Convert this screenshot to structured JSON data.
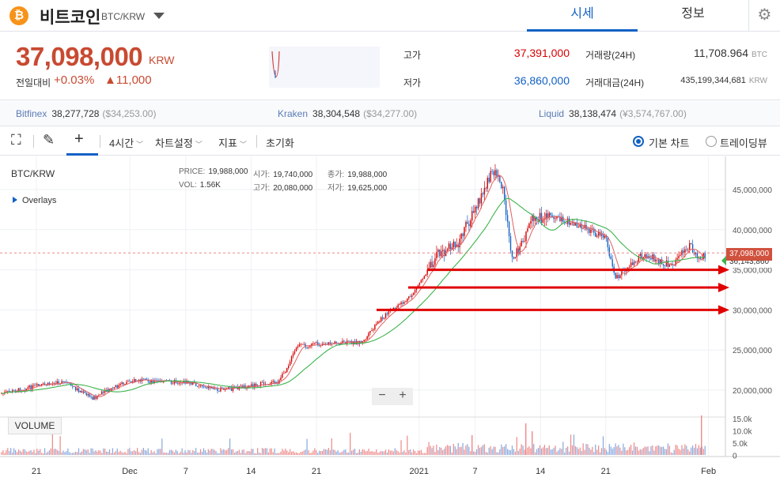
{
  "header": {
    "coin_icon": "bitcoin-icon",
    "coin_symbol": "₿",
    "coin_name": "비트코인",
    "pair": "BTC/KRW",
    "tabs": [
      {
        "label": "시세"
      },
      {
        "label": "정보"
      }
    ],
    "settings_icon": "⚙"
  },
  "summary": {
    "price": "37,098,000",
    "unit": "KRW",
    "change_label": "전일대비",
    "change_pct": "+0.03%",
    "change_abs": "▲11,000",
    "high_label": "고가",
    "high": "37,391,000",
    "low_label": "저가",
    "low": "36,860,000",
    "volume_label": "거래량(24H)",
    "volume": "11,708.964",
    "volume_unit": "BTC",
    "amount_label": "거래대금(24H)",
    "amount": "435,199,344,681",
    "amount_unit": "KRW"
  },
  "exchanges": [
    {
      "name": "Bitfinex",
      "price": "38,277,728",
      "usd": "($34,253.00)"
    },
    {
      "name": "Kraken",
      "price": "38,304,548",
      "usd": "($34,277.00)"
    },
    {
      "name": "Liquid",
      "price": "38,138,474",
      "usd": "(¥3,574,767.00)"
    }
  ],
  "toolbar": {
    "interval": "4시간",
    "chart_settings": "차트설정",
    "indicators": "지표",
    "reset": "초기화",
    "basic_chart": "기본 차트",
    "tradingview": "트레이딩뷰"
  },
  "chart_info": {
    "pair": "BTC/KRW",
    "overlays": "Overlays",
    "price_k": "PRICE:",
    "price_v": "19,988,000",
    "vol_k": "VOL:",
    "vol_v": "1.56K",
    "open_k": "시가:",
    "open_v": "19,740,000",
    "high_k": "고가:",
    "high_v": "20,080,000",
    "close_k": "종가:",
    "close_v": "19,988,000",
    "low_k": "저가:",
    "low_v": "19,625,000",
    "current_tag": "37,098,000",
    "ma_tag": "36,143,860",
    "volume_label": "VOLUME",
    "zoom_out": "−",
    "zoom_in": "+"
  },
  "chart_data": {
    "type": "candlestick",
    "x_ticks": [
      "21",
      "Dec",
      "7",
      "14",
      "21",
      "2021",
      "7",
      "14",
      "21",
      "Feb"
    ],
    "y_ticks": [
      "45,000,000",
      "40,000,000",
      "35,000,000",
      "30,000,000",
      "25,000,000",
      "20,000,000"
    ],
    "vol_ticks": [
      "15.0k",
      "10.0k",
      "5.0k",
      "0"
    ],
    "ylim": [
      18000000,
      48500000
    ],
    "close_path": [
      [
        "Nov 17",
        19500000
      ],
      [
        "Nov 21",
        20500000
      ],
      [
        "Nov 24",
        21000000
      ],
      [
        "Nov 27",
        19000000
      ],
      [
        "Dec 1",
        21200000
      ],
      [
        "Dec 7",
        21000000
      ],
      [
        "Dec 11",
        20000000
      ],
      [
        "Dec 14",
        20600000
      ],
      [
        "Dec 17",
        21000000
      ],
      [
        "Dec 19",
        25500000
      ],
      [
        "Dec 22",
        25800000
      ],
      [
        "Dec 26",
        26000000
      ],
      [
        "Dec 28",
        29000000
      ],
      [
        "Dec 31",
        31500000
      ],
      [
        "Jan 3",
        37000000
      ],
      [
        "Jan 5",
        38000000
      ],
      [
        "Jan 8",
        45000000
      ],
      [
        "Jan 9",
        47500000
      ],
      [
        "Jan 10",
        45000000
      ],
      [
        "Jan 11",
        36000000
      ],
      [
        "Jan 13",
        41000000
      ],
      [
        "Jan 15",
        42000000
      ],
      [
        "Jan 18",
        40500000
      ],
      [
        "Jan 21",
        39000000
      ],
      [
        "Jan 22",
        34000000
      ],
      [
        "Jan 25",
        37000000
      ],
      [
        "Jan 28",
        35500000
      ],
      [
        "Jan 30",
        38000000
      ],
      [
        "Jan 31",
        36500000
      ],
      [
        "Feb 1",
        37098000
      ]
    ],
    "horizontal_lines": [
      35000000,
      32800000,
      30000000
    ],
    "current_price": 37098000
  },
  "colors": {
    "up": "#d60000",
    "down": "#1261c4",
    "ma_short": "#e06060",
    "ma_long": "#3cb44b",
    "arrow": "#e00000"
  }
}
